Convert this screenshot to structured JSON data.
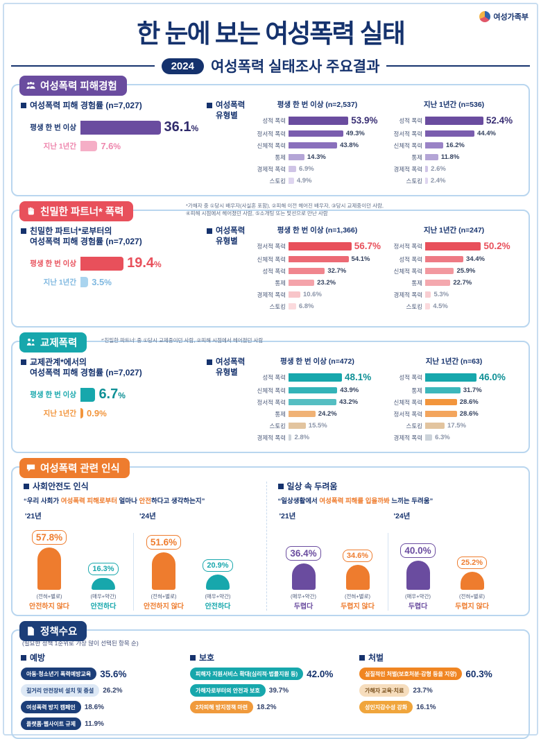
{
  "header": {
    "title": "한 눈에 보는 여성폭력 실태",
    "year_badge": "2024",
    "subtitle": "여성폭력 실태조사 주요결과",
    "logo_text": "여성가족부"
  },
  "s1": {
    "badge": "여성폭력 피해경험",
    "left": {
      "heading1": "여성폭력 피해 경험률 (n=7,027)",
      "heading2": "",
      "bars": [
        {
          "label": "평생 한 번 이상",
          "v": "36.1",
          "unit": "%",
          "color": "#6a4c9f",
          "label_color": "#15326d",
          "val_color": "#2f2a6b"
        },
        {
          "label": "지난 1년간",
          "v": "7.6",
          "unit": "%",
          "color": "#f5aec6",
          "label_color": "#ee86ad",
          "val_color": "#ee86ad"
        }
      ]
    },
    "types_heading": "여성폭력 유형별",
    "col1": {
      "header": "평생 한 번 이상 (n=2,537)",
      "rows": [
        {
          "label": "성적 폭력",
          "v": "53.9%",
          "color": "#6a4c9f"
        },
        {
          "label": "정서적 폭력",
          "v": "49.3%",
          "color": "#7a5dae"
        },
        {
          "label": "신체적 폭력",
          "v": "43.8%",
          "color": "#8a70bc"
        },
        {
          "label": "통제",
          "v": "14.3%",
          "color": "#b4a5d6"
        },
        {
          "label": "경제적 폭력",
          "v": "6.9%",
          "color": "#cfc4e6"
        },
        {
          "label": "스토킹",
          "v": "4.9%",
          "color": "#ded5ef"
        }
      ]
    },
    "col2": {
      "header": "지난 1년간 (n=536)",
      "rows": [
        {
          "label": "성적 폭력",
          "v": "52.4%",
          "color": "#6a4c9f"
        },
        {
          "label": "정서적 폭력",
          "v": "44.4%",
          "color": "#7a5dae"
        },
        {
          "label": "신체적 폭력",
          "v": "16.2%",
          "color": "#9a83c6"
        },
        {
          "label": "통제",
          "v": "11.8%",
          "color": "#b4a5d6"
        },
        {
          "label": "경제적 폭력",
          "v": "2.6%",
          "color": "#cfc4e6"
        },
        {
          "label": "스토킹",
          "v": "2.4%",
          "color": "#ded5ef"
        }
      ]
    }
  },
  "s2": {
    "badge": "친밀한 파트너* 폭력",
    "note1": "*가해자 중 ①당시 배우자(사실혼 포함), ②피해 이전 헤어진 배우자, ③당시 교제중이던 사람,",
    "note2": "④피해 시점에서 헤어졌던 사람, ⑤소개팅 또는 맞선으로 만난 사람",
    "left": {
      "heading1": "친밀한 파트너*로부터의",
      "heading2": "여성폭력 피해 경험률 (n=7,027)",
      "bars": [
        {
          "label": "평생 한 번 이상",
          "v": "19.4",
          "unit": "%",
          "color": "#e8505b",
          "label_color": "#e8505b",
          "val_color": "#e8505b"
        },
        {
          "label": "지난 1년간",
          "v": "3.5",
          "unit": "%",
          "color": "#a9d4ef",
          "label_color": "#7fb8e0",
          "val_color": "#7fb8e0"
        }
      ]
    },
    "types_heading": "여성폭력 유형별",
    "col1": {
      "header": "평생 한 번 이상 (n=1,366)",
      "rows": [
        {
          "label": "정서적 폭력",
          "v": "56.7%",
          "color": "#e8505b"
        },
        {
          "label": "신체적 폭력",
          "v": "54.1%",
          "color": "#ec6a74"
        },
        {
          "label": "성적 폭력",
          "v": "32.7%",
          "color": "#f0858e"
        },
        {
          "label": "통제",
          "v": "23.2%",
          "color": "#f4a3aa"
        },
        {
          "label": "경제적 폭력",
          "v": "10.6%",
          "color": "#f8c5c9"
        },
        {
          "label": "스토킹",
          "v": "6.8%",
          "color": "#fbdadd"
        }
      ]
    },
    "col2": {
      "header": "지난 1년간 (n=247)",
      "rows": [
        {
          "label": "정서적 폭력",
          "v": "50.2%",
          "color": "#e8505b"
        },
        {
          "label": "성적 폭력",
          "v": "34.4%",
          "color": "#ee7a84"
        },
        {
          "label": "신체적 폭력",
          "v": "25.9%",
          "color": "#f2989f"
        },
        {
          "label": "통제",
          "v": "22.7%",
          "color": "#f4a8ae"
        },
        {
          "label": "경제적 폭력",
          "v": "5.3%",
          "color": "#f8cdd1"
        },
        {
          "label": "스토킹",
          "v": "4.5%",
          "color": "#fbdadd"
        }
      ]
    }
  },
  "s3": {
    "badge": "교제폭력",
    "note1": "*'친밀한 파트너' 중 ①당시 교제중이던 사람, ②피해 시점에서 헤어졌던 사람",
    "left": {
      "heading1": "교제관계*에서의",
      "heading2": "여성폭력 피해 경험률 (n=7,027)",
      "bars": [
        {
          "label": "평생 한 번 이상",
          "v": "6.7",
          "unit": "%",
          "color": "#17a7ac",
          "label_color": "#17a7ac",
          "val_color": "#0f9096"
        },
        {
          "label": "지난 1년간",
          "v": "0.9",
          "unit": "%",
          "color": "#f2953c",
          "label_color": "#f2953c",
          "val_color": "#f2953c"
        }
      ]
    },
    "types_heading": "여성폭력 유형별",
    "col1": {
      "header": "평생 한 번 이상 (n=472)",
      "rows": [
        {
          "label": "성적 폭력",
          "v": "48.1%",
          "color": "#17a7ac"
        },
        {
          "label": "신체적 폭력",
          "v": "43.9%",
          "color": "#33b3b8"
        },
        {
          "label": "정서적 폭력",
          "v": "43.2%",
          "color": "#55bec2"
        },
        {
          "label": "통제",
          "v": "24.2%",
          "color": "#f0b276"
        },
        {
          "label": "스토킹",
          "v": "15.5%",
          "color": "#e2c49f"
        },
        {
          "label": "경제적 폭력",
          "v": "2.8%",
          "color": "#ccd3da"
        }
      ]
    },
    "col2": {
      "header": "지난 1년간 (n=63)",
      "rows": [
        {
          "label": "성적 폭력",
          "v": "46.0%",
          "color": "#17a7ac"
        },
        {
          "label": "통제",
          "v": "31.7%",
          "color": "#3cb7bb"
        },
        {
          "label": "신체적 폭력",
          "v": "28.6%",
          "color": "#f2953c"
        },
        {
          "label": "정서적 폭력",
          "v": "28.6%",
          "color": "#f3a55d"
        },
        {
          "label": "스토킹",
          "v": "17.5%",
          "color": "#e2c49f"
        },
        {
          "label": "경제적 폭력",
          "v": "6.3%",
          "color": "#ccd3da"
        }
      ]
    }
  },
  "s4": {
    "badge": "여성폭력 관련 인식",
    "safety": {
      "heading": "사회안전도 인식",
      "quote_pre": "“우리 사회가 ",
      "quote_hl": "여성폭력 피해로부터",
      "quote_mid": " 얼마나 ",
      "quote_hl2": "안전",
      "quote_post": "하다고 생각하는지”",
      "groups": [
        {
          "year": "'21년",
          "items": [
            {
              "v": "57.8%",
              "color": "#ee7c2e",
              "sub": "(전혀+별로)",
              "label": "안전하지 않다"
            },
            {
              "v": "16.3%",
              "color": "#17a7ac",
              "sub": "(매우+약간)",
              "label": "안전하다"
            }
          ]
        },
        {
          "year": "'24년",
          "items": [
            {
              "v": "51.6%",
              "color": "#ee7c2e",
              "sub": "(전혀+별로)",
              "label": "안전하지 않다"
            },
            {
              "v": "20.9%",
              "color": "#17a7ac",
              "sub": "(매우+약간)",
              "label": "안전하다"
            }
          ]
        }
      ]
    },
    "fear": {
      "heading": "일상 속 두려움",
      "quote_pre": "“일상생활에서 ",
      "quote_hl": "여성폭력 피해를 입을까봐",
      "quote_mid": " 느끼는 ",
      "quote_hl2": "",
      "quote_post": "두려움”",
      "groups": [
        {
          "year": "'21년",
          "items": [
            {
              "v": "36.4%",
              "color": "#6a4c9f",
              "sub": "(매우+약간)",
              "label": "두렵다"
            },
            {
              "v": "34.6%",
              "color": "#ee7c2e",
              "sub": "(전혀+별로)",
              "label": "두렵지 않다"
            }
          ]
        },
        {
          "year": "'24년",
          "items": [
            {
              "v": "40.0%",
              "color": "#6a4c9f",
              "sub": "(매우+약간)",
              "label": "두렵다"
            },
            {
              "v": "25.2%",
              "color": "#ee7c2e",
              "sub": "(전혀+별로)",
              "label": "두렵지 않다"
            }
          ]
        }
      ]
    }
  },
  "s5": {
    "badge": "정책수요",
    "note": "(필요한 정책 1순위로 가장 많이 선택된 항목 순)",
    "groups": [
      {
        "heading": "예방",
        "items": [
          {
            "label": "아동·청소년기 폭력예방교육",
            "v": "35.6%",
            "bg": "#1c3e78",
            "fg": "#ffffff"
          },
          {
            "label": "길거리 안전장비 설치 및 증설",
            "v": "26.2%",
            "bg": "#dde8f5",
            "fg": "#1c3e78"
          },
          {
            "label": "여성폭력 방지 캠페인",
            "v": "18.6%",
            "bg": "#1c3e78",
            "fg": "#ffffff"
          },
          {
            "label": "플랫폼·웹사이트 규제",
            "v": "11.9%",
            "bg": "#1c3e78",
            "fg": "#ffffff"
          }
        ]
      },
      {
        "heading": "보호",
        "items": [
          {
            "label": "피해자 지원서비스 확대(심리적·법률지원 등)",
            "v": "42.0%",
            "bg": "#17a7ac",
            "fg": "#ffffff"
          },
          {
            "label": "가해자로부터의 안전과 보호",
            "v": "39.7%",
            "bg": "#17a7ac",
            "fg": "#ffffff"
          },
          {
            "label": "2차피해 방지정책 마련",
            "v": "18.2%",
            "bg": "#f09a3c",
            "fg": "#ffffff"
          }
        ]
      },
      {
        "heading": "처벌",
        "items": [
          {
            "label": "실질적인 처벌(보호처분·감형 등을 지양)",
            "v": "60.3%",
            "bg": "#f08522",
            "fg": "#ffffff"
          },
          {
            "label": "가해자 교육·치료",
            "v": "23.7%",
            "bg": "#f6ddbd",
            "fg": "#7a5220"
          },
          {
            "label": "성인지감수성 강화",
            "v": "16.1%",
            "bg": "#f0a53c",
            "fg": "#ffffff"
          }
        ]
      }
    ]
  },
  "chart_data": [
    {
      "type": "bar",
      "title": "여성폭력 피해 경험률 (n=7,027)",
      "categories": [
        "평생 한 번 이상",
        "지난 1년간"
      ],
      "values": [
        36.1,
        7.6
      ],
      "unit": "%"
    },
    {
      "type": "bar",
      "title": "여성폭력 유형별 - 평생 한 번 이상 (n=2,537)",
      "categories": [
        "성적 폭력",
        "정서적 폭력",
        "신체적 폭력",
        "통제",
        "경제적 폭력",
        "스토킹"
      ],
      "values": [
        53.9,
        49.3,
        43.8,
        14.3,
        6.9,
        4.9
      ],
      "unit": "%"
    },
    {
      "type": "bar",
      "title": "여성폭력 유형별 - 지난 1년간 (n=536)",
      "categories": [
        "성적 폭력",
        "정서적 폭력",
        "신체적 폭력",
        "통제",
        "경제적 폭력",
        "스토킹"
      ],
      "values": [
        52.4,
        44.4,
        16.2,
        11.8,
        2.6,
        2.4
      ],
      "unit": "%"
    },
    {
      "type": "bar",
      "title": "친밀한 파트너로부터의 여성폭력 피해 경험률 (n=7,027)",
      "categories": [
        "평생 한 번 이상",
        "지난 1년간"
      ],
      "values": [
        19.4,
        3.5
      ],
      "unit": "%"
    },
    {
      "type": "bar",
      "title": "친밀한 파트너 폭력 유형별 - 평생 한 번 이상 (n=1,366)",
      "categories": [
        "정서적 폭력",
        "신체적 폭력",
        "성적 폭력",
        "통제",
        "경제적 폭력",
        "스토킹"
      ],
      "values": [
        56.7,
        54.1,
        32.7,
        23.2,
        10.6,
        6.8
      ],
      "unit": "%"
    },
    {
      "type": "bar",
      "title": "친밀한 파트너 폭력 유형별 - 지난 1년간 (n=247)",
      "categories": [
        "정서적 폭력",
        "성적 폭력",
        "신체적 폭력",
        "통제",
        "경제적 폭력",
        "스토킹"
      ],
      "values": [
        50.2,
        34.4,
        25.9,
        22.7,
        5.3,
        4.5
      ],
      "unit": "%"
    },
    {
      "type": "bar",
      "title": "교제관계에서의 여성폭력 피해 경험률 (n=7,027)",
      "categories": [
        "평생 한 번 이상",
        "지난 1년간"
      ],
      "values": [
        6.7,
        0.9
      ],
      "unit": "%"
    },
    {
      "type": "bar",
      "title": "교제폭력 유형별 - 평생 한 번 이상 (n=472)",
      "categories": [
        "성적 폭력",
        "신체적 폭력",
        "정서적 폭력",
        "통제",
        "스토킹",
        "경제적 폭력"
      ],
      "values": [
        48.1,
        43.9,
        43.2,
        24.2,
        15.5,
        2.8
      ],
      "unit": "%"
    },
    {
      "type": "bar",
      "title": "교제폭력 유형별 - 지난 1년간 (n=63)",
      "categories": [
        "성적 폭력",
        "통제",
        "신체적 폭력",
        "정서적 폭력",
        "스토킹",
        "경제적 폭력"
      ],
      "values": [
        46.0,
        31.7,
        28.6,
        28.6,
        17.5,
        6.3
      ],
      "unit": "%"
    },
    {
      "type": "bar",
      "title": "사회안전도 인식",
      "categories": [
        "'21년 안전하지 않다(전혀+별로)",
        "'21년 안전하다(매우+약간)",
        "'24년 안전하지 않다(전혀+별로)",
        "'24년 안전하다(매우+약간)"
      ],
      "values": [
        57.8,
        16.3,
        51.6,
        20.9
      ],
      "unit": "%"
    },
    {
      "type": "bar",
      "title": "일상 속 두려움",
      "categories": [
        "'21년 두렵다(매우+약간)",
        "'21년 두렵지 않다(전혀+별로)",
        "'24년 두렵다(매우+약간)",
        "'24년 두렵지 않다(전혀+별로)"
      ],
      "values": [
        36.4,
        34.6,
        40.0,
        25.2
      ],
      "unit": "%"
    },
    {
      "type": "bar",
      "title": "정책수요 - 예방",
      "categories": [
        "아동·청소년기 폭력예방교육",
        "길거리 안전장비 설치 및 증설",
        "여성폭력 방지 캠페인",
        "플랫폼·웹사이트 규제"
      ],
      "values": [
        35.6,
        26.2,
        18.6,
        11.9
      ],
      "unit": "%"
    },
    {
      "type": "bar",
      "title": "정책수요 - 보호",
      "categories": [
        "피해자 지원서비스 확대(심리적·법률지원 등)",
        "가해자로부터의 안전과 보호",
        "2차피해 방지정책 마련"
      ],
      "values": [
        42.0,
        39.7,
        18.2
      ],
      "unit": "%"
    },
    {
      "type": "bar",
      "title": "정책수요 - 처벌",
      "categories": [
        "실질적인 처벌(보호처분·감형 등을 지양)",
        "가해자 교육·치료",
        "성인지감수성 강화"
      ],
      "values": [
        60.3,
        23.7,
        16.1
      ],
      "unit": "%"
    }
  ]
}
